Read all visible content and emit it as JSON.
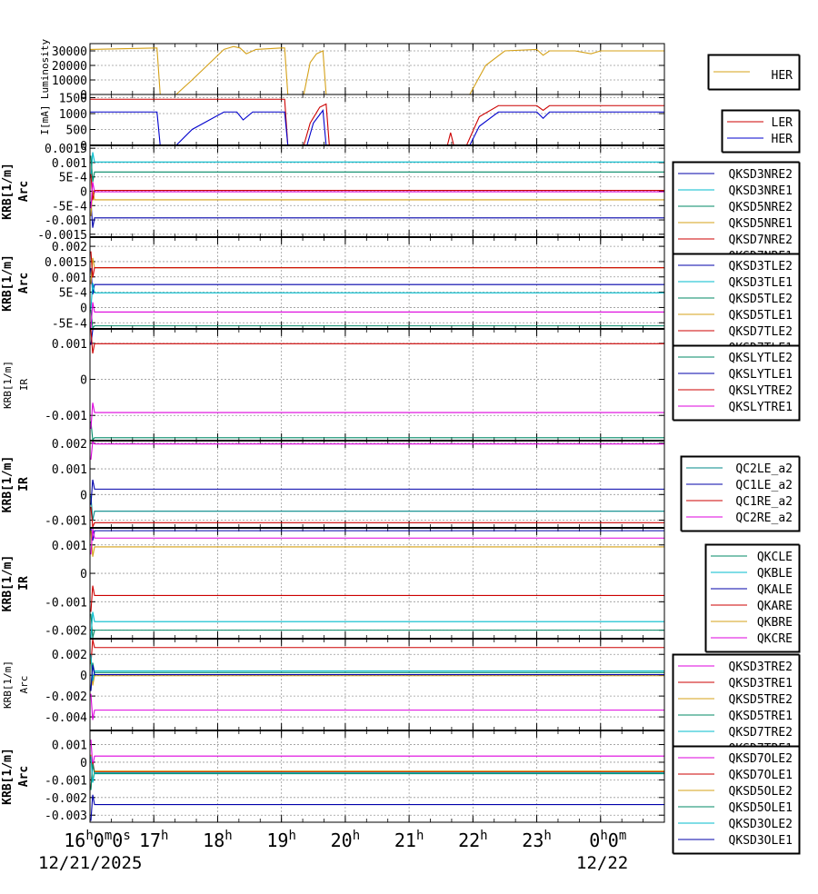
{
  "chart_data": [
    {
      "type": "line",
      "ylabel": "Luminosity",
      "yticks": [
        "30000",
        "20000",
        "10000",
        "0"
      ],
      "ylim": [
        0,
        35000
      ],
      "legend": [
        "HER"
      ],
      "series": [
        {
          "name": "HER",
          "color": "#d4a017",
          "x": [
            16.0,
            17.05,
            17.1,
            17.35,
            17.6,
            18.1,
            18.25,
            18.35,
            18.45,
            18.6,
            19.0,
            19.05,
            19.1,
            19.35,
            19.45,
            19.55,
            19.65,
            19.7,
            21.95,
            22.2,
            22.5,
            23.0,
            23.1,
            23.2,
            23.6,
            23.85,
            24.0,
            24.5,
            25.0
          ],
          "y": [
            31000,
            32000,
            0,
            0,
            10000,
            31000,
            33000,
            32000,
            28000,
            31000,
            32000,
            32000,
            0,
            0,
            22000,
            28000,
            30000,
            0,
            0,
            20000,
            30000,
            31000,
            27000,
            30000,
            30000,
            28000,
            30000,
            30000,
            30000
          ]
        }
      ]
    },
    {
      "type": "line",
      "ylabel": "I[mA]",
      "yticks": [
        "1500",
        "1000",
        "500",
        "0"
      ],
      "ylim": [
        0,
        1600
      ],
      "legend": [
        "LER",
        "HER"
      ],
      "series": [
        {
          "name": "LER",
          "color": "#cc0000",
          "x": [
            16.0,
            19.05,
            19.1,
            19.35,
            19.45,
            19.6,
            19.7,
            19.75,
            21.6,
            21.65,
            21.7,
            21.75,
            21.9,
            22.1,
            22.4,
            23.0,
            23.1,
            23.2,
            25.0
          ],
          "y": [
            1450,
            1450,
            0,
            0,
            700,
            1200,
            1300,
            0,
            0,
            400,
            0,
            0,
            0,
            900,
            1250,
            1250,
            1100,
            1250,
            1250
          ]
        }
      ],
      "series_her": {
        "name": "HER",
        "color": "#0000cc",
        "x": [
          16.0,
          17.05,
          17.1,
          17.35,
          17.6,
          18.1,
          18.3,
          18.4,
          18.55,
          19.0,
          19.05,
          19.1,
          19.4,
          19.5,
          19.65,
          19.7,
          21.95,
          22.1,
          22.4,
          23.0,
          23.1,
          23.2,
          23.6,
          25.0
        ],
        "y": [
          1050,
          1050,
          0,
          0,
          500,
          1050,
          1050,
          800,
          1050,
          1050,
          1050,
          0,
          0,
          700,
          1100,
          0,
          0,
          600,
          1050,
          1050,
          850,
          1050,
          1050,
          1050
        ]
      }
    },
    {
      "type": "line",
      "ylabel": "KRB[1/m]",
      "ylabel2": "Arc",
      "yticks": [
        "0.0015",
        "0.001",
        "5E-4",
        "0",
        "-5E-4",
        "-0.001",
        "-0.0015"
      ],
      "ylim": [
        -0.0016,
        0.0016
      ],
      "legend": [
        "QKSD3NRE2",
        "QKSD3NRE1",
        "QKSD5NRE2",
        "QKSD5NRE1",
        "QKSD7NRE2",
        "QKSD7NRE1"
      ],
      "series": [
        {
          "name": "QKSD3NRE2",
          "color": "#0000aa",
          "value": -0.00093
        },
        {
          "name": "QKSD3NRE1",
          "color": "#00bbcc",
          "value": 0.00102
        },
        {
          "name": "QKSD5NRE2",
          "color": "#008866",
          "value": 0.00067
        },
        {
          "name": "QKSD5NRE1",
          "color": "#d4a017",
          "value": -0.0003
        },
        {
          "name": "QKSD7NRE2",
          "color": "#cc0000",
          "value": 3e-05
        },
        {
          "name": "QKSD7NRE1",
          "color": "#dd00dd",
          "value": -2e-05
        }
      ]
    },
    {
      "type": "line",
      "ylabel": "KRB[1/m]",
      "ylabel2": "Arc",
      "yticks": [
        "0.002",
        "0.0015",
        "0.001",
        "5E-4",
        "0",
        "-5E-4"
      ],
      "ylim": [
        -0.0007,
        0.0023
      ],
      "legend": [
        "QKSD3TLE2",
        "QKSD3TLE1",
        "QKSD5TLE2",
        "QKSD5TLE1",
        "QKSD7TLE2",
        "QKSD7TLE1"
      ],
      "series": [
        {
          "name": "QKSD3TLE2",
          "color": "#0000aa",
          "value": 0.00075
        },
        {
          "name": "QKSD3TLE1",
          "color": "#00bbcc",
          "value": 0.00048
        },
        {
          "name": "QKSD5TLE2",
          "color": "#008866",
          "value": -0.0006
        },
        {
          "name": "QKSD5TLE1",
          "color": "#d4a017",
          "value": 0.0013
        },
        {
          "name": "QKSD7TLE2",
          "color": "#cc0000",
          "value": 0.0013
        },
        {
          "name": "QKSD7TLE1",
          "color": "#dd00dd",
          "value": -0.00015
        }
      ]
    },
    {
      "type": "line",
      "ylabel": "KRB[1/m]",
      "ylabel2": "IR",
      "yticks": [
        "0.001",
        "0",
        "-0.001"
      ],
      "ylim": [
        -0.0017,
        0.0014
      ],
      "legend": [
        "QKSLYTLE2",
        "QKSLYTLE1",
        "QKSLYTRE2",
        "QKSLYTRE1"
      ],
      "series": [
        {
          "name": "QKSLYTLE2",
          "color": "#008866",
          "value": -0.00162
        },
        {
          "name": "QKSLYTLE1",
          "color": "#0000aa",
          "value": 0.00141
        },
        {
          "name": "QKSLYTRE2",
          "color": "#cc0000",
          "value": 0.00099
        },
        {
          "name": "QKSLYTRE1",
          "color": "#dd00dd",
          "value": -0.00092
        }
      ]
    },
    {
      "type": "line",
      "ylabel": "KRB[1/m]",
      "ylabel2": "IR",
      "yticks": [
        "0.002",
        "0.001",
        "0",
        "-0.001"
      ],
      "ylim": [
        -0.0013,
        0.0021
      ],
      "legend": [
        "QC2LE_a2",
        "QC1LE_a2",
        "QC1RE_a2",
        "QC2RE_a2"
      ],
      "series": [
        {
          "name": "QC2LE_a2",
          "color": "#008888",
          "value": -0.00065
        },
        {
          "name": "QC1LE_a2",
          "color": "#0000aa",
          "value": 0.00021
        },
        {
          "name": "QC1RE_a2",
          "color": "#cc0000",
          "value": -0.0011
        },
        {
          "name": "QC2RE_a2",
          "color": "#dd00dd",
          "value": 0.00197
        }
      ]
    },
    {
      "type": "line",
      "ylabel": "KRB[1/m]",
      "ylabel2": "IR",
      "yticks": [
        "0.001",
        "0",
        "-0.001",
        "-0.002"
      ],
      "ylim": [
        -0.0023,
        0.0016
      ],
      "legend": [
        "QKCLE",
        "QKBLE",
        "QKALE",
        "QKARE",
        "QKBRE",
        "QKCRE"
      ],
      "series": [
        {
          "name": "QKCLE",
          "color": "#008866",
          "value": -0.002
        },
        {
          "name": "QKBLE",
          "color": "#00bbcc",
          "value": -0.0017
        },
        {
          "name": "QKALE",
          "color": "#0000aa",
          "value": 0.0015
        },
        {
          "name": "QKARE",
          "color": "#cc0000",
          "value": -0.00078
        },
        {
          "name": "QKBRE",
          "color": "#d4a017",
          "value": 0.00093
        },
        {
          "name": "QKCRE",
          "color": "#dd00dd",
          "value": 0.00124
        }
      ]
    },
    {
      "type": "line",
      "ylabel": "KRB[1/m]",
      "ylabel2": "Arc",
      "yticks": [
        "0.002",
        "0",
        "-0.002",
        "-0.004"
      ],
      "ylim": [
        -0.0053,
        0.0035
      ],
      "legend": [
        "QKSD3TRE2",
        "QKSD3TRE1",
        "QKSD5TRE2",
        "QKSD5TRE1",
        "QKSD7TRE2",
        "QKSD7TRE1"
      ],
      "series": [
        {
          "name": "QKSD3TRE2",
          "color": "#dd00dd",
          "value": -0.00335
        },
        {
          "name": "QKSD3TRE1",
          "color": "#cc0000",
          "value": 0.00265
        },
        {
          "name": "QKSD5TRE2",
          "color": "#d4a017",
          "value": -5e-05
        },
        {
          "name": "QKSD5TRE1",
          "color": "#008866",
          "value": 0.00025
        },
        {
          "name": "QKSD7TRE2",
          "color": "#00bbcc",
          "value": 0.0004
        },
        {
          "name": "QKSD7TRE1",
          "color": "#0000aa",
          "value": 5e-05
        }
      ]
    },
    {
      "type": "line",
      "ylabel": "KRB[1/m]",
      "ylabel2": "Arc",
      "yticks": [
        "0.001",
        "0",
        "-0.001",
        "-0.002",
        "-0.003"
      ],
      "ylim": [
        -0.0034,
        0.0018
      ],
      "legend": [
        "QKSD7OLE2",
        "QKSD7OLE1",
        "QKSD5OLE2",
        "QKSD5OLE1",
        "QKSD3OLE2",
        "QKSD3OLE1"
      ],
      "series": [
        {
          "name": "QKSD7OLE2",
          "color": "#dd00dd",
          "value": 0.00035
        },
        {
          "name": "QKSD7OLE1",
          "color": "#cc0000",
          "value": -0.00055
        },
        {
          "name": "QKSD5OLE2",
          "color": "#d4a017",
          "value": -0.0005
        },
        {
          "name": "QKSD5OLE1",
          "color": "#008866",
          "value": -0.00065
        },
        {
          "name": "QKSD3OLE2",
          "color": "#00bbcc",
          "value": -0.0006
        },
        {
          "name": "QKSD3OLE1",
          "color": "#0000aa",
          "value": -0.0024
        }
      ]
    }
  ],
  "x_axis": {
    "range_hours": [
      16.0,
      25.0
    ],
    "labels": [
      {
        "hour": "16",
        "text": "16",
        "sup": "h",
        "rest": "0",
        "sup2": "m",
        "rest2": "0",
        "sup3": "s"
      },
      {
        "hour": "17",
        "text": "17",
        "sup": "h"
      },
      {
        "hour": "18",
        "text": "18",
        "sup": "h"
      },
      {
        "hour": "19",
        "text": "19",
        "sup": "h"
      },
      {
        "hour": "20",
        "text": "20",
        "sup": "h"
      },
      {
        "hour": "21",
        "text": "21",
        "sup": "h"
      },
      {
        "hour": "22",
        "text": "22",
        "sup": "h"
      },
      {
        "hour": "23",
        "text": "23",
        "sup": "h"
      },
      {
        "hour": "24",
        "text": "0",
        "sup": "h",
        "rest": "0",
        "sup2": "m"
      }
    ],
    "date_left": "12/21/2025",
    "date_right": "12/22"
  }
}
